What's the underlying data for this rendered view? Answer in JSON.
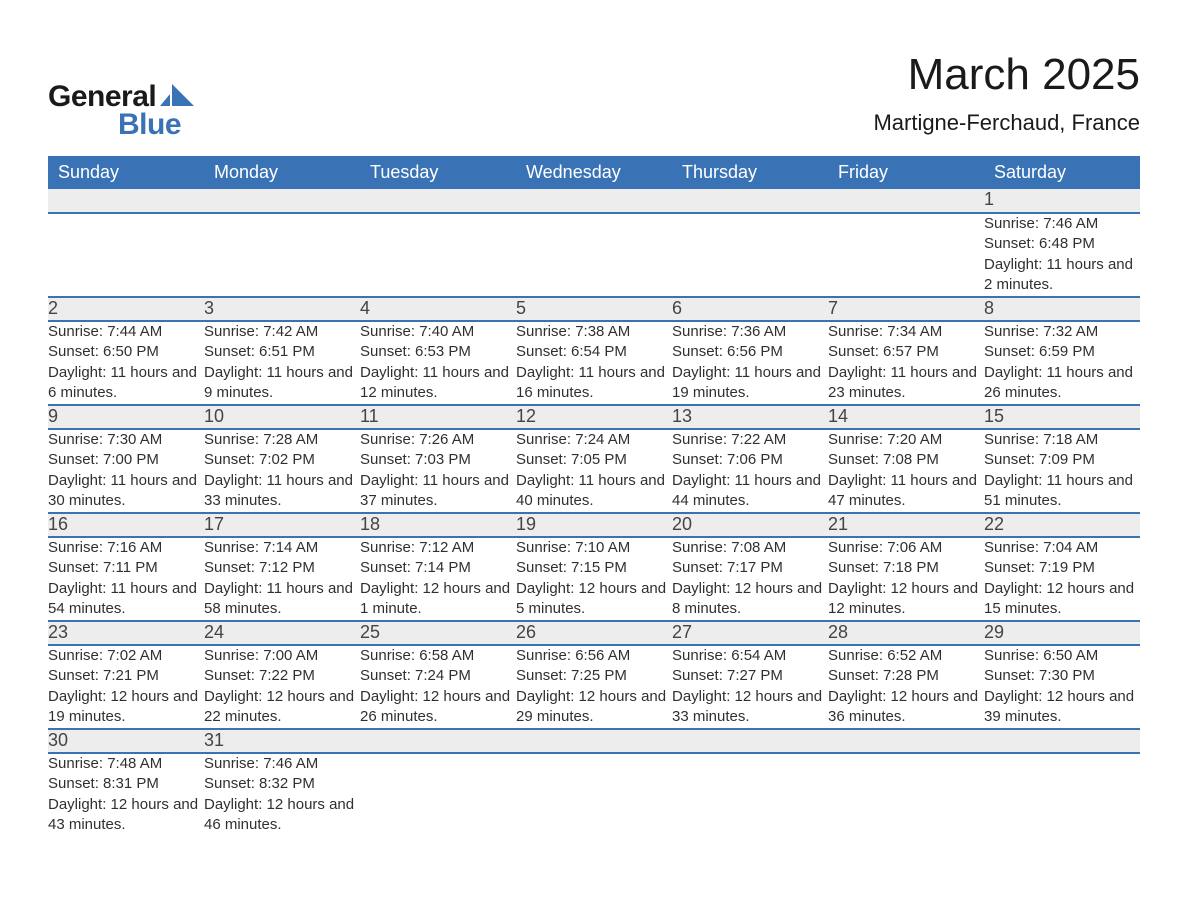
{
  "logo": {
    "text_general": "General",
    "text_blue": "Blue",
    "shape_color": "#3a73b5"
  },
  "title": "March 2025",
  "location": "Martigne-Ferchaud, France",
  "colors": {
    "header_bg": "#3a73b5",
    "header_text": "#ffffff",
    "daynum_bg": "#ededed",
    "body_text": "#303030",
    "row_border": "#3a73b5"
  },
  "fonts": {
    "title_pt": 44,
    "location_pt": 22,
    "th_pt": 18,
    "daynum_pt": 18,
    "cell_pt": 15
  },
  "day_headers": [
    "Sunday",
    "Monday",
    "Tuesday",
    "Wednesday",
    "Thursday",
    "Friday",
    "Saturday"
  ],
  "weeks": [
    [
      null,
      null,
      null,
      null,
      null,
      null,
      {
        "d": "1",
        "sunrise": "7:46 AM",
        "sunset": "6:48 PM",
        "daylight": "11 hours and 2 minutes."
      }
    ],
    [
      {
        "d": "2",
        "sunrise": "7:44 AM",
        "sunset": "6:50 PM",
        "daylight": "11 hours and 6 minutes."
      },
      {
        "d": "3",
        "sunrise": "7:42 AM",
        "sunset": "6:51 PM",
        "daylight": "11 hours and 9 minutes."
      },
      {
        "d": "4",
        "sunrise": "7:40 AM",
        "sunset": "6:53 PM",
        "daylight": "11 hours and 12 minutes."
      },
      {
        "d": "5",
        "sunrise": "7:38 AM",
        "sunset": "6:54 PM",
        "daylight": "11 hours and 16 minutes."
      },
      {
        "d": "6",
        "sunrise": "7:36 AM",
        "sunset": "6:56 PM",
        "daylight": "11 hours and 19 minutes."
      },
      {
        "d": "7",
        "sunrise": "7:34 AM",
        "sunset": "6:57 PM",
        "daylight": "11 hours and 23 minutes."
      },
      {
        "d": "8",
        "sunrise": "7:32 AM",
        "sunset": "6:59 PM",
        "daylight": "11 hours and 26 minutes."
      }
    ],
    [
      {
        "d": "9",
        "sunrise": "7:30 AM",
        "sunset": "7:00 PM",
        "daylight": "11 hours and 30 minutes."
      },
      {
        "d": "10",
        "sunrise": "7:28 AM",
        "sunset": "7:02 PM",
        "daylight": "11 hours and 33 minutes."
      },
      {
        "d": "11",
        "sunrise": "7:26 AM",
        "sunset": "7:03 PM",
        "daylight": "11 hours and 37 minutes."
      },
      {
        "d": "12",
        "sunrise": "7:24 AM",
        "sunset": "7:05 PM",
        "daylight": "11 hours and 40 minutes."
      },
      {
        "d": "13",
        "sunrise": "7:22 AM",
        "sunset": "7:06 PM",
        "daylight": "11 hours and 44 minutes."
      },
      {
        "d": "14",
        "sunrise": "7:20 AM",
        "sunset": "7:08 PM",
        "daylight": "11 hours and 47 minutes."
      },
      {
        "d": "15",
        "sunrise": "7:18 AM",
        "sunset": "7:09 PM",
        "daylight": "11 hours and 51 minutes."
      }
    ],
    [
      {
        "d": "16",
        "sunrise": "7:16 AM",
        "sunset": "7:11 PM",
        "daylight": "11 hours and 54 minutes."
      },
      {
        "d": "17",
        "sunrise": "7:14 AM",
        "sunset": "7:12 PM",
        "daylight": "11 hours and 58 minutes."
      },
      {
        "d": "18",
        "sunrise": "7:12 AM",
        "sunset": "7:14 PM",
        "daylight": "12 hours and 1 minute."
      },
      {
        "d": "19",
        "sunrise": "7:10 AM",
        "sunset": "7:15 PM",
        "daylight": "12 hours and 5 minutes."
      },
      {
        "d": "20",
        "sunrise": "7:08 AM",
        "sunset": "7:17 PM",
        "daylight": "12 hours and 8 minutes."
      },
      {
        "d": "21",
        "sunrise": "7:06 AM",
        "sunset": "7:18 PM",
        "daylight": "12 hours and 12 minutes."
      },
      {
        "d": "22",
        "sunrise": "7:04 AM",
        "sunset": "7:19 PM",
        "daylight": "12 hours and 15 minutes."
      }
    ],
    [
      {
        "d": "23",
        "sunrise": "7:02 AM",
        "sunset": "7:21 PM",
        "daylight": "12 hours and 19 minutes."
      },
      {
        "d": "24",
        "sunrise": "7:00 AM",
        "sunset": "7:22 PM",
        "daylight": "12 hours and 22 minutes."
      },
      {
        "d": "25",
        "sunrise": "6:58 AM",
        "sunset": "7:24 PM",
        "daylight": "12 hours and 26 minutes."
      },
      {
        "d": "26",
        "sunrise": "6:56 AM",
        "sunset": "7:25 PM",
        "daylight": "12 hours and 29 minutes."
      },
      {
        "d": "27",
        "sunrise": "6:54 AM",
        "sunset": "7:27 PM",
        "daylight": "12 hours and 33 minutes."
      },
      {
        "d": "28",
        "sunrise": "6:52 AM",
        "sunset": "7:28 PM",
        "daylight": "12 hours and 36 minutes."
      },
      {
        "d": "29",
        "sunrise": "6:50 AM",
        "sunset": "7:30 PM",
        "daylight": "12 hours and 39 minutes."
      }
    ],
    [
      {
        "d": "30",
        "sunrise": "7:48 AM",
        "sunset": "8:31 PM",
        "daylight": "12 hours and 43 minutes."
      },
      {
        "d": "31",
        "sunrise": "7:46 AM",
        "sunset": "8:32 PM",
        "daylight": "12 hours and 46 minutes."
      },
      null,
      null,
      null,
      null,
      null
    ]
  ],
  "labels": {
    "sunrise": "Sunrise: ",
    "sunset": "Sunset: ",
    "daylight": "Daylight: "
  }
}
